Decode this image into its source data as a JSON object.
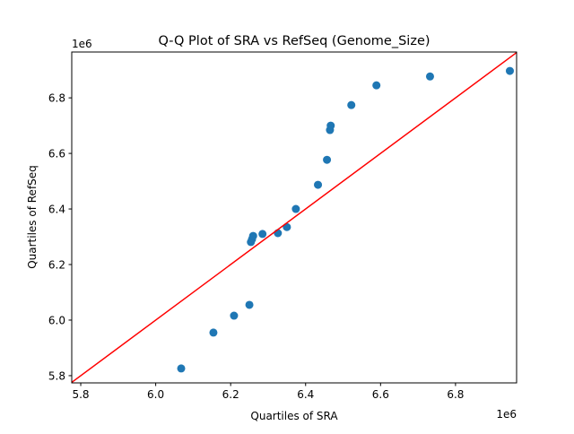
{
  "chart_data": {
    "type": "scatter",
    "title": "Q-Q Plot of SRA vs RefSeq (Genome_Size)",
    "xlabel": "Quartiles of SRA",
    "ylabel": "Quartiles of RefSeq",
    "x_offset_label": "1e6",
    "y_offset_label": "1e6",
    "xlim": [
      5.776,
      6.963
    ],
    "ylim": [
      5.774,
      6.965
    ],
    "xticks": [
      5.8,
      6.0,
      6.2,
      6.4,
      6.6,
      6.8
    ],
    "yticks": [
      5.8,
      6.0,
      6.2,
      6.4,
      6.6,
      6.8
    ],
    "xtick_labels": [
      "5.8",
      "6.0",
      "6.2",
      "6.4",
      "6.6",
      "6.8"
    ],
    "ytick_labels": [
      "5.8",
      "6.0",
      "6.2",
      "6.4",
      "6.6",
      "6.8"
    ],
    "grid": false,
    "point_color": "#1f77b4",
    "reference_line": {
      "type": "y=x",
      "color": "#ff0000"
    },
    "points": [
      [
        6.068,
        5.826
      ],
      [
        6.154,
        5.955
      ],
      [
        6.209,
        6.016
      ],
      [
        6.25,
        6.055
      ],
      [
        6.254,
        6.281
      ],
      [
        6.257,
        6.291
      ],
      [
        6.26,
        6.303
      ],
      [
        6.285,
        6.31
      ],
      [
        6.326,
        6.313
      ],
      [
        6.35,
        6.335
      ],
      [
        6.374,
        6.4
      ],
      [
        6.433,
        6.487
      ],
      [
        6.457,
        6.577
      ],
      [
        6.465,
        6.684
      ],
      [
        6.467,
        6.7
      ],
      [
        6.522,
        6.774
      ],
      [
        6.589,
        6.845
      ],
      [
        6.732,
        6.877
      ],
      [
        6.945,
        6.897
      ]
    ]
  }
}
